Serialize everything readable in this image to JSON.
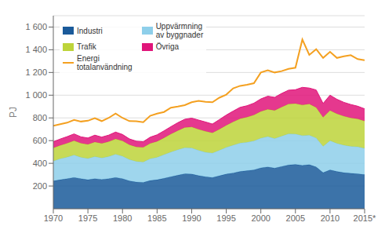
{
  "chart_data": {
    "type": "area",
    "stacked": true,
    "x": [
      1970,
      1971,
      1972,
      1973,
      1974,
      1975,
      1976,
      1977,
      1978,
      1979,
      1980,
      1981,
      1982,
      1983,
      1984,
      1985,
      1986,
      1987,
      1988,
      1989,
      1990,
      1991,
      1992,
      1993,
      1994,
      1995,
      1996,
      1997,
      1998,
      1999,
      2000,
      2001,
      2002,
      2003,
      2004,
      2005,
      2006,
      2007,
      2008,
      2009,
      2010,
      2011,
      2012,
      2013,
      2014,
      2015
    ],
    "xlim": [
      1970,
      2015
    ],
    "xticks": [
      1970,
      1975,
      1980,
      1985,
      1990,
      1995,
      2000,
      2005,
      2010,
      {
        "value": 2015,
        "label": "2015*"
      }
    ],
    "ylim": [
      0,
      1700
    ],
    "yticks": [
      200,
      400,
      600,
      800,
      {
        "value": 1000,
        "label": "1 000"
      },
      {
        "value": 1200,
        "label": "1 200"
      },
      {
        "value": 1400,
        "label": "1 400"
      },
      {
        "value": 1600,
        "label": "1 600"
      }
    ],
    "ylabel": "PJ",
    "grid": true,
    "legend": "upper left",
    "series": [
      {
        "name": "Industri",
        "color": "#1a5a9a",
        "type": "area",
        "values": [
          245,
          255,
          265,
          275,
          265,
          255,
          265,
          258,
          265,
          275,
          265,
          245,
          235,
          232,
          248,
          255,
          268,
          282,
          295,
          308,
          305,
          292,
          282,
          275,
          290,
          305,
          315,
          328,
          335,
          342,
          360,
          368,
          358,
          372,
          385,
          390,
          382,
          388,
          368,
          318,
          342,
          328,
          318,
          312,
          308,
          300
        ]
      },
      {
        "name": "Uppvärmning\nav byggnader",
        "color": "#8ecfea",
        "type": "area",
        "values": [
          175,
          185,
          190,
          198,
          188,
          188,
          195,
          190,
          195,
          205,
          198,
          188,
          182,
          180,
          192,
          198,
          208,
          218,
          225,
          230,
          230,
          222,
          215,
          215,
          225,
          235,
          245,
          250,
          250,
          255,
          262,
          268,
          260,
          268,
          275,
          268,
          262,
          260,
          255,
          232,
          258,
          248,
          242,
          238,
          238,
          232
        ]
      },
      {
        "name": "Trafik",
        "color": "#bdd43a",
        "type": "area",
        "values": [
          115,
          118,
          122,
          126,
          124,
          124,
          128,
          128,
          130,
          135,
          135,
          130,
          128,
          128,
          135,
          140,
          148,
          158,
          168,
          178,
          185,
          185,
          185,
          178,
          185,
          195,
          205,
          215,
          222,
          228,
          235,
          240,
          248,
          255,
          262,
          268,
          270,
          275,
          268,
          255,
          265,
          260,
          255,
          250,
          245,
          240
        ]
      },
      {
        "name": "Övriga",
        "color": "#e0157a",
        "type": "area",
        "values": [
          55,
          56,
          58,
          60,
          56,
          56,
          60,
          55,
          58,
          60,
          56,
          52,
          50,
          50,
          55,
          58,
          62,
          65,
          70,
          72,
          78,
          82,
          82,
          78,
          85,
          90,
          95,
          100,
          100,
          105,
          110,
          115,
          115,
          120,
          122,
          122,
          155,
          140,
          155,
          122,
          135,
          128,
          122,
          118,
          112,
          108
        ]
      },
      {
        "name": "Energi\ntotalanvändning",
        "color": "#f4a020",
        "type": "line",
        "values": [
          730,
          745,
          758,
          782,
          768,
          775,
          798,
          772,
          800,
          838,
          800,
          772,
          770,
          762,
          818,
          838,
          852,
          890,
          900,
          912,
          938,
          950,
          942,
          938,
          978,
          1005,
          1060,
          1082,
          1092,
          1105,
          1200,
          1220,
          1200,
          1212,
          1232,
          1242,
          1490,
          1355,
          1405,
          1328,
          1382,
          1328,
          1342,
          1352,
          1318,
          1308
        ]
      }
    ]
  }
}
